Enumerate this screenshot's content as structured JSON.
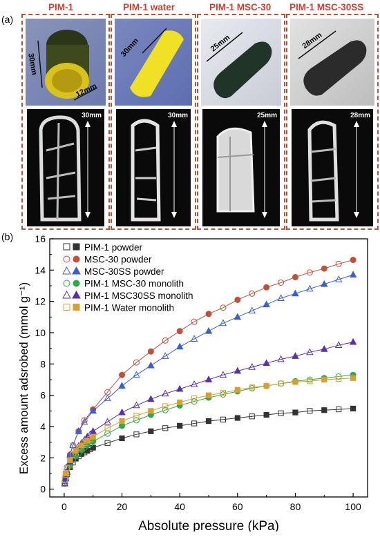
{
  "panel_a": {
    "label": "(a)",
    "columns": [
      {
        "title": "PIM-1",
        "photo_dims": [
          "30mm",
          "12mm"
        ],
        "ct_dim": "30mm",
        "photo_color": "#c7c31a"
      },
      {
        "title": "PIM-1 water",
        "photo_dims": [
          "30mm"
        ],
        "ct_dim": "30mm",
        "photo_color": "#f3e22a"
      },
      {
        "title": "PIM-1 MSC-30",
        "photo_dims": [
          "25mm"
        ],
        "ct_dim": "25mm",
        "photo_color": "#2a3a30"
      },
      {
        "title": "PIM-1 MSC-30SS",
        "photo_dims": [
          "28mm"
        ],
        "ct_dim": "28mm",
        "photo_color": "#252525"
      }
    ]
  },
  "panel_b": {
    "label": "(b)"
  },
  "chart_data": {
    "type": "scatter",
    "xlabel": "Absolute pressure (kPa)",
    "ylabel": "Excess amount adsrobed (mmol g⁻¹)",
    "xlim": [
      -5,
      105
    ],
    "ylim": [
      -0.5,
      16
    ],
    "xticks": [
      0,
      20,
      40,
      60,
      80,
      100
    ],
    "yticks": [
      0,
      2,
      4,
      6,
      8,
      10,
      12,
      14,
      16
    ],
    "legend_position": "top-left",
    "series": [
      {
        "name": "PIM-1 powder",
        "marker": "square",
        "color": "#333333",
        "x": [
          0.2,
          0.5,
          1,
          2,
          3,
          4,
          5,
          6,
          7,
          8,
          9,
          10,
          15,
          20,
          25,
          30,
          35,
          40,
          45,
          50,
          55,
          60,
          65,
          70,
          75,
          80,
          85,
          90,
          95,
          100
        ],
        "y": [
          0.4,
          0.65,
          0.95,
          1.4,
          1.7,
          1.95,
          2.1,
          2.25,
          2.35,
          2.45,
          2.55,
          2.65,
          2.95,
          3.25,
          3.5,
          3.7,
          3.9,
          4.05,
          4.2,
          4.35,
          4.45,
          4.55,
          4.65,
          4.75,
          4.85,
          4.9,
          5.0,
          5.05,
          5.1,
          5.15
        ]
      },
      {
        "name": "MSC-30 powder",
        "marker": "circle",
        "color": "#c0503a",
        "x": [
          0.2,
          0.5,
          1,
          2,
          3,
          5,
          7,
          10,
          15,
          20,
          25,
          30,
          35,
          40,
          45,
          50,
          55,
          60,
          65,
          70,
          75,
          80,
          85,
          90,
          95,
          100
        ],
        "y": [
          0.5,
          0.9,
          1.4,
          2.2,
          2.8,
          3.7,
          4.4,
          5.1,
          6.2,
          7.3,
          8.1,
          8.8,
          9.5,
          10.1,
          10.7,
          11.2,
          11.6,
          12.1,
          12.5,
          12.9,
          13.2,
          13.55,
          13.85,
          14.1,
          14.4,
          14.65
        ]
      },
      {
        "name": "MSC-30SS powder",
        "marker": "triangle",
        "color": "#3a5fcf",
        "x": [
          0.2,
          0.5,
          1,
          2,
          3,
          5,
          7,
          10,
          15,
          20,
          25,
          30,
          35,
          40,
          45,
          50,
          55,
          60,
          65,
          70,
          75,
          80,
          85,
          90,
          95,
          100
        ],
        "y": [
          0.5,
          0.9,
          1.4,
          2.2,
          2.8,
          3.7,
          4.3,
          5.0,
          5.8,
          6.6,
          7.3,
          7.9,
          8.5,
          9.1,
          9.6,
          10.1,
          10.6,
          11.0,
          11.4,
          11.8,
          12.2,
          12.5,
          12.8,
          13.1,
          13.4,
          13.7
        ]
      },
      {
        "name": "PIM-1 MSC-30 monolith",
        "marker": "circle",
        "color": "#2ea84a",
        "x": [
          0.2,
          0.5,
          1,
          2,
          3,
          4,
          5,
          6,
          7,
          8,
          9,
          10,
          15,
          20,
          25,
          30,
          35,
          40,
          45,
          50,
          55,
          60,
          65,
          70,
          75,
          80,
          85,
          90,
          95,
          100
        ],
        "y": [
          0.35,
          0.6,
          0.95,
          1.5,
          1.85,
          2.1,
          2.3,
          2.5,
          2.65,
          2.8,
          2.9,
          3.05,
          3.55,
          4.05,
          4.4,
          4.75,
          5.05,
          5.35,
          5.6,
          5.85,
          6.05,
          6.25,
          6.45,
          6.6,
          6.75,
          6.9,
          7.0,
          7.1,
          7.2,
          7.3
        ]
      },
      {
        "name": "PIM-1 MSC30SS monolith",
        "marker": "triangle",
        "color": "#5a2fb0",
        "x": [
          0.2,
          0.5,
          1,
          2,
          3,
          4,
          5,
          6,
          7,
          8,
          9,
          10,
          15,
          20,
          25,
          30,
          35,
          40,
          45,
          50,
          55,
          60,
          65,
          70,
          75,
          80,
          85,
          90,
          95,
          100
        ],
        "y": [
          0.35,
          0.7,
          1.1,
          1.75,
          2.2,
          2.5,
          2.75,
          2.95,
          3.15,
          3.35,
          3.5,
          3.7,
          4.3,
          4.9,
          5.35,
          5.75,
          6.1,
          6.4,
          6.7,
          7.0,
          7.3,
          7.55,
          7.8,
          8.05,
          8.3,
          8.5,
          8.75,
          8.95,
          9.2,
          9.4
        ]
      },
      {
        "name": "PIM-1 Water monolith",
        "marker": "square",
        "color": "#d8a030",
        "x": [
          0.2,
          0.5,
          1,
          2,
          3,
          4,
          5,
          6,
          7,
          8,
          9,
          10,
          15,
          20,
          25,
          30,
          35,
          40,
          45,
          50,
          55,
          60,
          65,
          70,
          75,
          80,
          85,
          90,
          95,
          100
        ],
        "y": [
          0.6,
          1.0,
          1.35,
          1.85,
          2.2,
          2.45,
          2.65,
          2.8,
          2.95,
          3.1,
          3.2,
          3.35,
          3.9,
          4.35,
          4.7,
          5.0,
          5.3,
          5.55,
          5.8,
          6.0,
          6.15,
          6.35,
          6.5,
          6.6,
          6.75,
          6.85,
          6.9,
          7.0,
          7.05,
          7.1
        ]
      }
    ]
  }
}
